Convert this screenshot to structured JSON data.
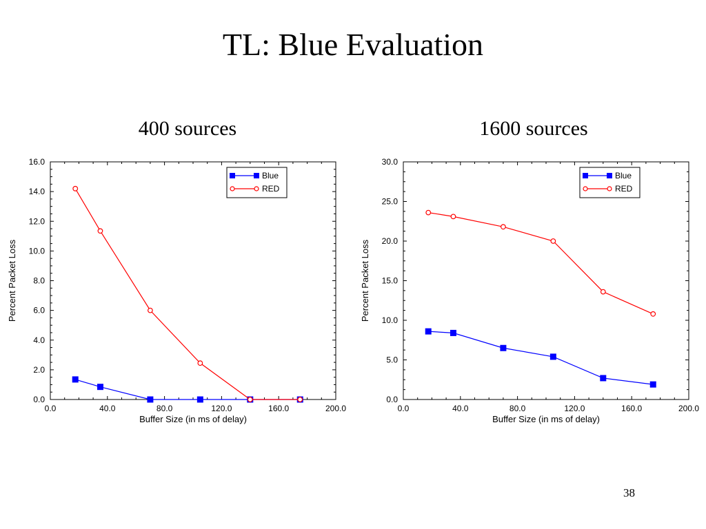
{
  "title": "TL: Blue Evaluation",
  "page_number": "38",
  "chart_data": [
    {
      "type": "line",
      "subtitle": "400 sources",
      "xlabel": "Buffer Size (in ms of delay)",
      "ylabel": "Percent Packet Loss",
      "xlim": [
        0,
        200
      ],
      "ylim": [
        0,
        16
      ],
      "xticks": [
        "0.0",
        "40.0",
        "80.0",
        "120.0",
        "160.0",
        "200.0"
      ],
      "yticks": [
        "0.0",
        "2.0",
        "4.0",
        "6.0",
        "8.0",
        "10.0",
        "12.0",
        "14.0",
        "16.0"
      ],
      "legend_position": "top-right",
      "grid": false,
      "series": [
        {
          "name": "Blue",
          "color": "#0000ff",
          "marker": "square-filled",
          "x": [
            17.5,
            35,
            70,
            105,
            140,
            175
          ],
          "y": [
            1.35,
            0.85,
            0.0,
            0.0,
            0.0,
            0.0
          ]
        },
        {
          "name": "RED",
          "color": "#ff0000",
          "marker": "circle-open",
          "x": [
            17.5,
            35,
            70,
            105,
            140,
            175
          ],
          "y": [
            14.2,
            11.35,
            6.0,
            2.45,
            0.0,
            0.0
          ]
        }
      ]
    },
    {
      "type": "line",
      "subtitle": "1600 sources",
      "xlabel": "Buffer Size (in ms of delay)",
      "ylabel": "Percent Packet Loss",
      "xlim": [
        0,
        200
      ],
      "ylim": [
        0,
        30
      ],
      "xticks": [
        "0.0",
        "40.0",
        "80.0",
        "120.0",
        "160.0",
        "200.0"
      ],
      "yticks": [
        "0.0",
        "5.0",
        "10.0",
        "15.0",
        "20.0",
        "25.0",
        "30.0"
      ],
      "legend_position": "top-right",
      "grid": false,
      "series": [
        {
          "name": "Blue",
          "color": "#0000ff",
          "marker": "square-filled",
          "x": [
            17.5,
            35,
            70,
            105,
            140,
            175
          ],
          "y": [
            8.6,
            8.4,
            6.5,
            5.4,
            2.7,
            1.9
          ]
        },
        {
          "name": "RED",
          "color": "#ff0000",
          "marker": "circle-open",
          "x": [
            17.5,
            35,
            70,
            105,
            140,
            175
          ],
          "y": [
            23.6,
            23.1,
            21.8,
            20.0,
            13.6,
            10.8
          ]
        }
      ]
    }
  ]
}
